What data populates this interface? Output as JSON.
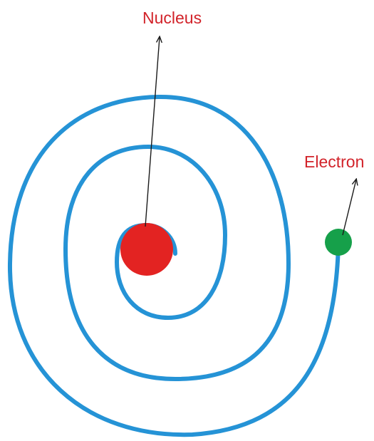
{
  "labels": {
    "nucleus": "Nucleus",
    "electron": "Electron"
  },
  "colors": {
    "spiral": "#2593d6",
    "nucleus": "#e32322",
    "electron": "#16a04a",
    "label_text": "#d2232a",
    "pointer": "#1a1a1a"
  }
}
